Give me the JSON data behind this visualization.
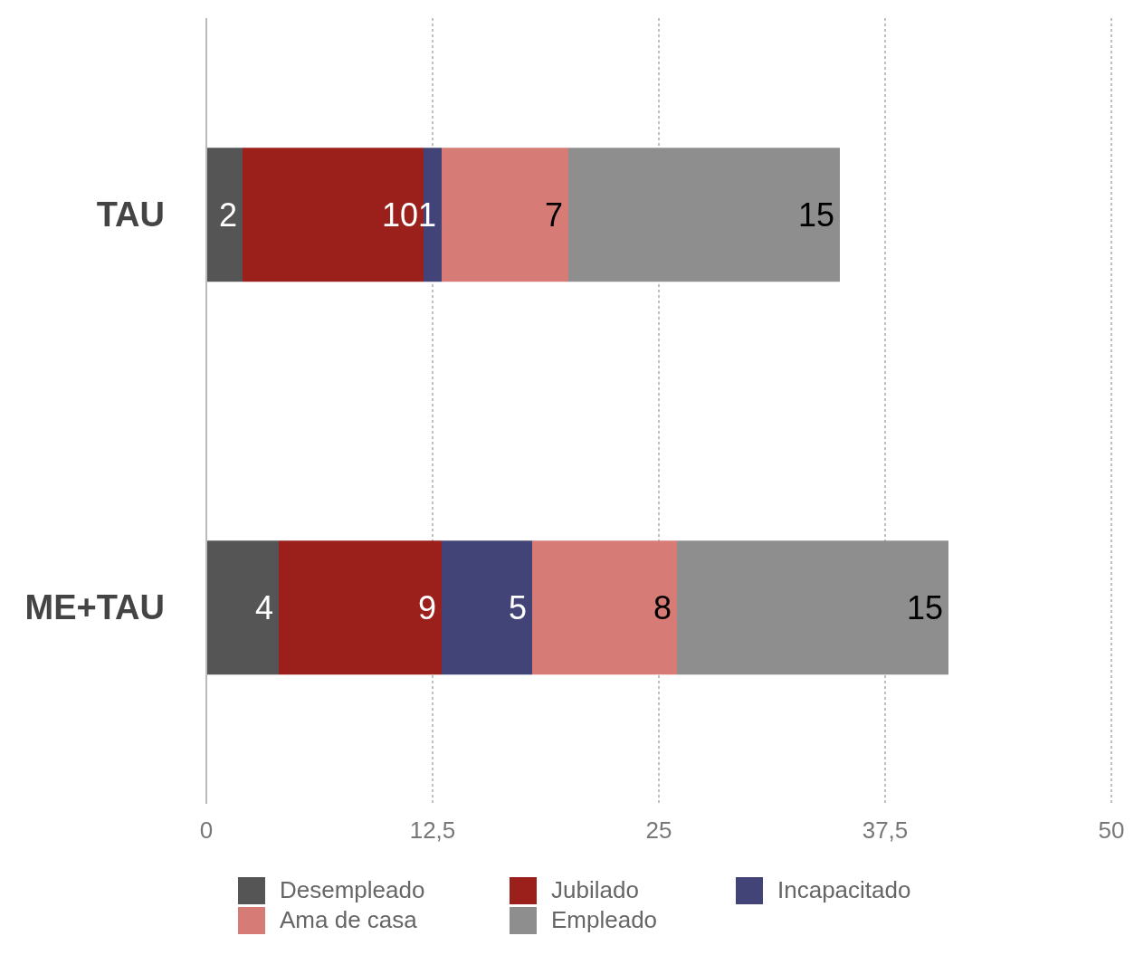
{
  "chart_data": {
    "type": "bar",
    "orientation": "horizontal",
    "stacked": true,
    "categories": [
      "TAU",
      "ME+TAU"
    ],
    "series": [
      {
        "name": "Desempleado",
        "color": "#555555",
        "values": [
          2,
          4
        ]
      },
      {
        "name": "Jubilado",
        "color": "#9b1f1a",
        "values": [
          10,
          9
        ]
      },
      {
        "name": "Incapacitado",
        "color": "#424478",
        "values": [
          1,
          5
        ]
      },
      {
        "name": "Ama de casa",
        "color": "#d77b76",
        "values": [
          7,
          8
        ]
      },
      {
        "name": "Empleado",
        "color": "#8e8e8e",
        "values": [
          15,
          15
        ]
      }
    ],
    "xlim": [
      0,
      50
    ],
    "xticks": [
      0,
      {
        "value": 12.5,
        "label": "12,5"
      },
      25,
      {
        "value": 37.5,
        "label": "37,5"
      },
      50
    ],
    "grid": "x",
    "legend": "bottom",
    "data_labels": true
  }
}
